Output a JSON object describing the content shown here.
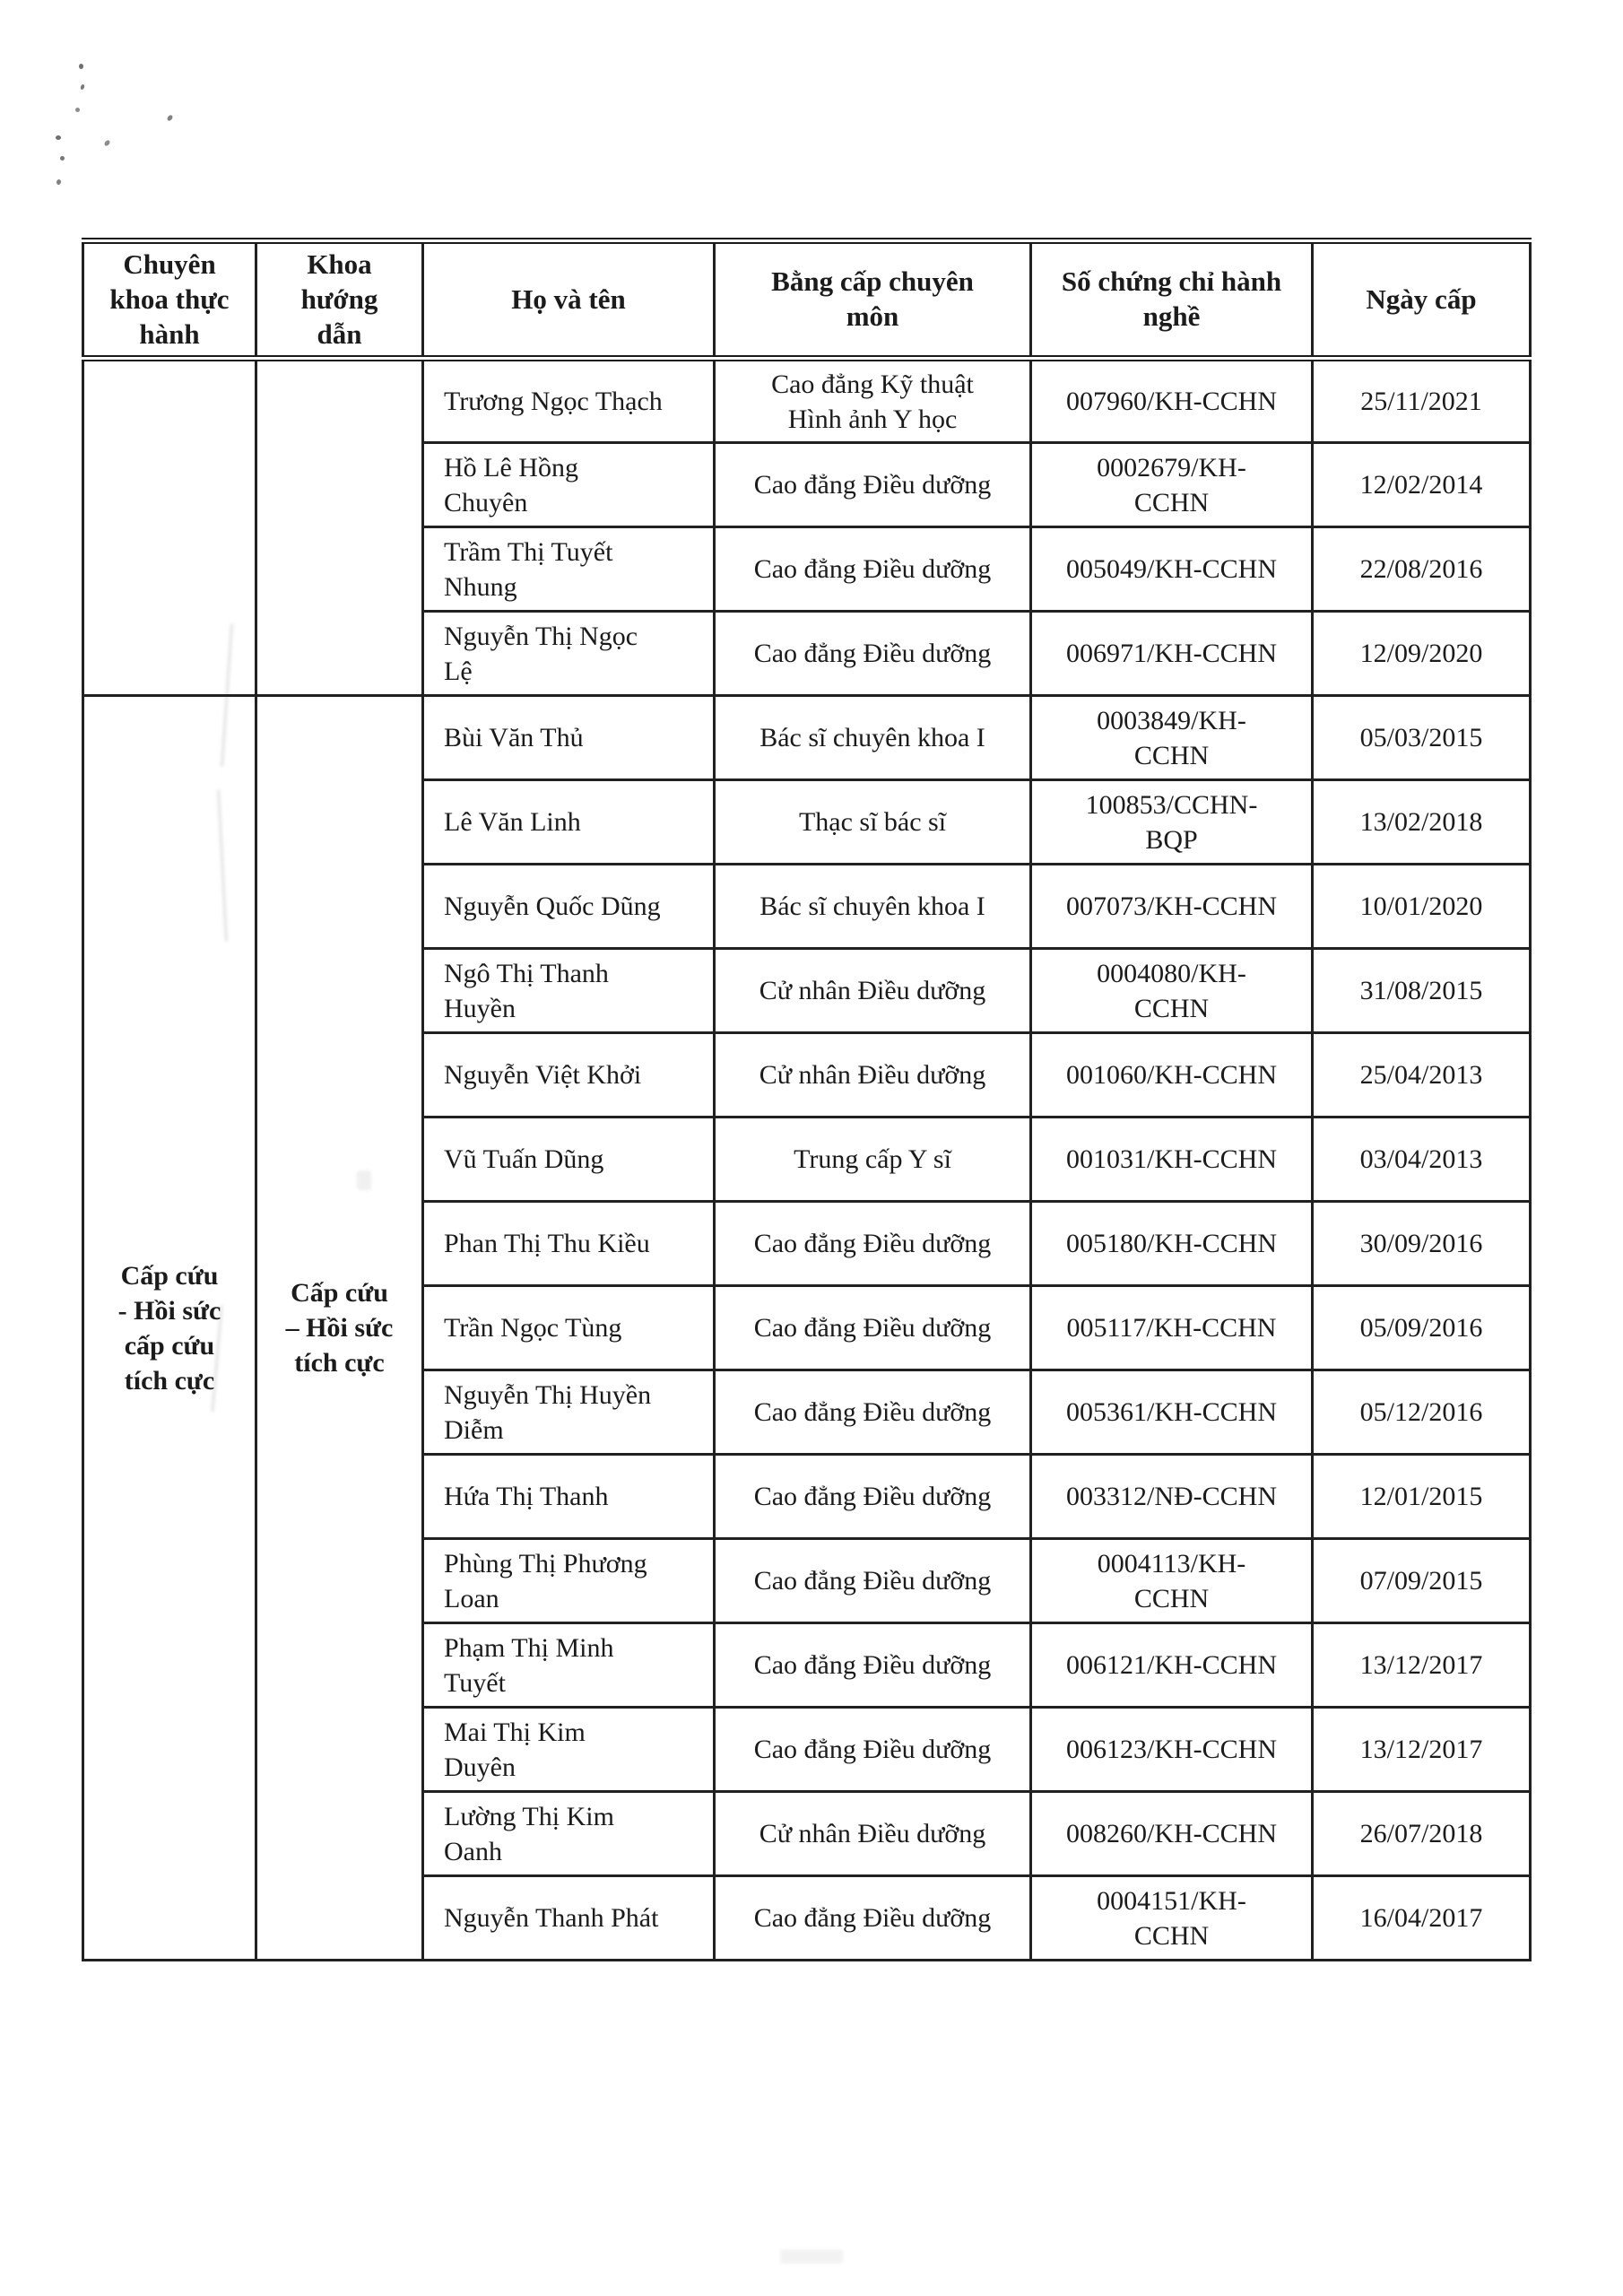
{
  "page": {
    "background": "#ffffff",
    "ink": "#1b1b1b"
  },
  "table": {
    "headers": [
      "Chuyên\nkhoa thực\nhành",
      "Khoa\nhướng\ndẫn",
      "Họ và tên",
      "Bằng cấp chuyên\nmôn",
      "Số chứng chỉ hành\nnghề",
      "Ngày cấp"
    ],
    "groups": [
      {
        "specialty": "",
        "department": "",
        "rows": [
          {
            "name": "Trương Ngọc Thạch",
            "degree": "Cao đẳng Kỹ thuật\nHình ảnh Y học",
            "cert": "007960/KH-CCHN",
            "date": "25/11/2021"
          },
          {
            "name": "Hồ Lê Hồng\nChuyên",
            "degree": "Cao đẳng Điều dưỡng",
            "cert": "0002679/KH-\nCCHN",
            "date": "12/02/2014"
          },
          {
            "name": "Trầm Thị Tuyết\nNhung",
            "degree": "Cao đẳng Điều dưỡng",
            "cert": "005049/KH-CCHN",
            "date": "22/08/2016"
          },
          {
            "name": "Nguyễn Thị Ngọc\nLệ",
            "degree": "Cao đẳng Điều dưỡng",
            "cert": "006971/KH-CCHN",
            "date": "12/09/2020"
          }
        ]
      },
      {
        "specialty": "Cấp cứu\n- Hồi sức\ncấp cứu\ntích cực",
        "department": "Cấp cứu\n– Hồi sức\ntích cực",
        "rows": [
          {
            "name": "Bùi Văn Thủ",
            "degree": "Bác sĩ chuyên khoa I",
            "cert": "0003849/KH-\nCCHN",
            "date": "05/03/2015"
          },
          {
            "name": "Lê Văn Linh",
            "degree": "Thạc sĩ bác sĩ",
            "cert": "100853/CCHN-\nBQP",
            "date": "13/02/2018"
          },
          {
            "name": "Nguyễn Quốc Dũng",
            "degree": "Bác sĩ chuyên khoa I",
            "cert": "007073/KH-CCHN",
            "date": "10/01/2020"
          },
          {
            "name": "Ngô Thị Thanh\nHuyền",
            "degree": "Cử nhân Điều dưỡng",
            "cert": "0004080/KH-\nCCHN",
            "date": "31/08/2015"
          },
          {
            "name": "Nguyễn Việt Khởi",
            "degree": "Cử nhân Điều dưỡng",
            "cert": "001060/KH-CCHN",
            "date": "25/04/2013"
          },
          {
            "name": "Vũ Tuấn Dũng",
            "degree": "Trung cấp Y sĩ",
            "cert": "001031/KH-CCHN",
            "date": "03/04/2013"
          },
          {
            "name": "Phan Thị Thu Kiều",
            "degree": "Cao đẳng Điều dưỡng",
            "cert": "005180/KH-CCHN",
            "date": "30/09/2016"
          },
          {
            "name": "Trần Ngọc Tùng",
            "degree": "Cao đẳng Điều dưỡng",
            "cert": "005117/KH-CCHN",
            "date": "05/09/2016"
          },
          {
            "name": "Nguyễn Thị Huyền\nDiễm",
            "degree": "Cao đẳng Điều dưỡng",
            "cert": "005361/KH-CCHN",
            "date": "05/12/2016"
          },
          {
            "name": "Hứa Thị Thanh",
            "degree": "Cao đẳng Điều dưỡng",
            "cert": "003312/NĐ-CCHN",
            "date": "12/01/2015"
          },
          {
            "name": "Phùng Thị Phương\nLoan",
            "degree": "Cao đẳng Điều dưỡng",
            "cert": "0004113/KH-\nCCHN",
            "date": "07/09/2015"
          },
          {
            "name": "Phạm Thị Minh\nTuyết",
            "degree": "Cao đẳng Điều dưỡng",
            "cert": "006121/KH-CCHN",
            "date": "13/12/2017"
          },
          {
            "name": "Mai Thị Kim\nDuyên",
            "degree": "Cao đẳng Điều dưỡng",
            "cert": "006123/KH-CCHN",
            "date": "13/12/2017"
          },
          {
            "name": "Lường Thị Kim\nOanh",
            "degree": "Cử nhân  Điều dưỡng",
            "cert": "008260/KH-CCHN",
            "date": "26/07/2018"
          },
          {
            "name": "Nguyễn Thanh Phát",
            "degree": "Cao đẳng Điều dưỡng",
            "cert": "0004151/KH-\nCCHN",
            "date": "16/04/2017"
          }
        ]
      }
    ]
  }
}
